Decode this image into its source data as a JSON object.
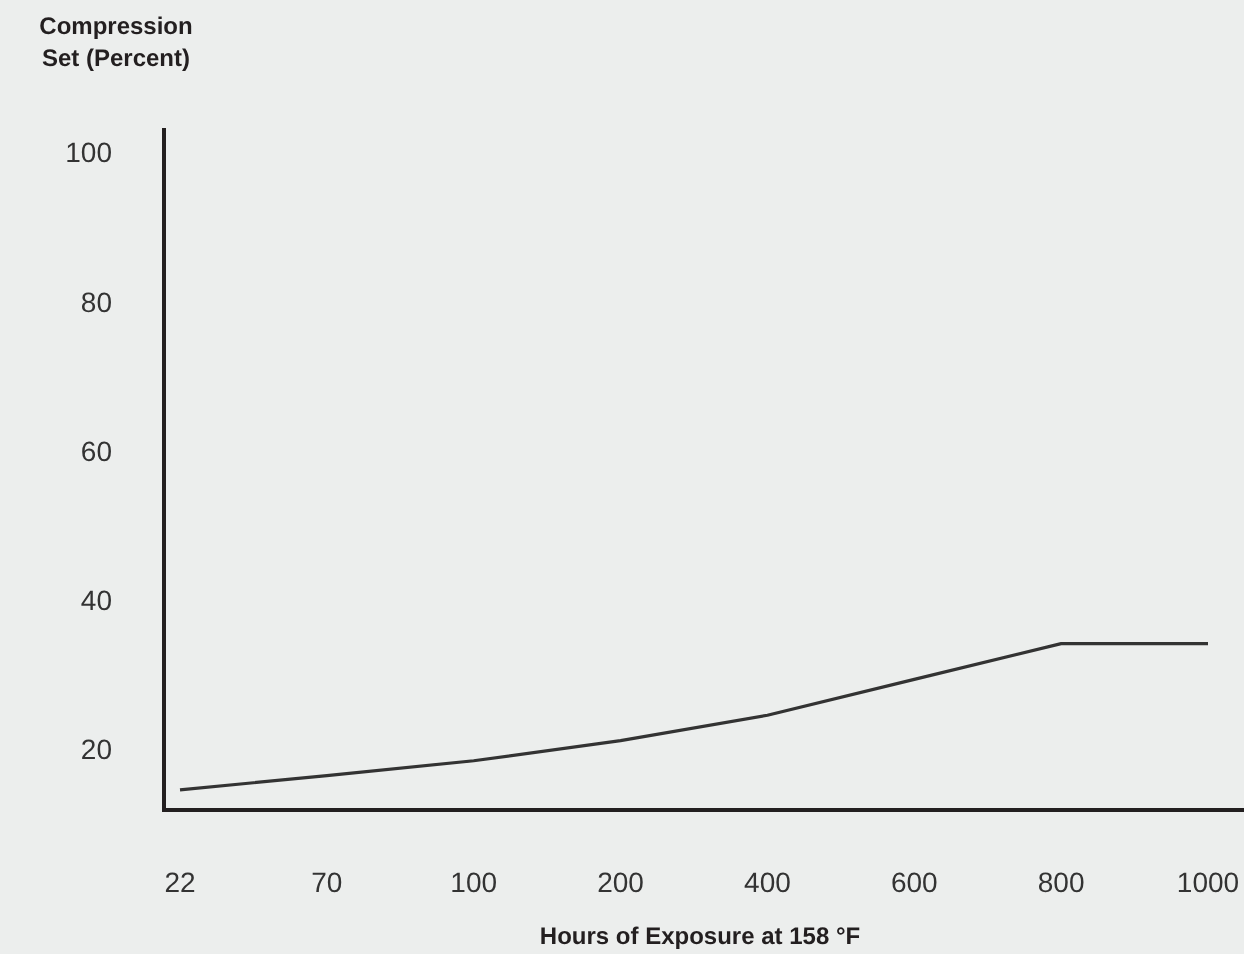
{
  "chart_data": {
    "type": "line",
    "ylabel": "Compression Set (Percent)",
    "xlabel": "Hours of Exposure at 158 °F",
    "categories": [
      "22",
      "70",
      "100",
      "200",
      "400",
      "600",
      "800",
      "1000"
    ],
    "series": [
      {
        "color": "#333333",
        "values": [
          14.7,
          16.6,
          18.6,
          21.3,
          24.7,
          29.5,
          34.3,
          34.3
        ]
      }
    ],
    "ylim": [
      12,
      103.4
    ],
    "yticks": [
      20,
      40,
      60,
      80,
      100
    ],
    "grid": false,
    "marker": "none",
    "line_style": "solid"
  }
}
